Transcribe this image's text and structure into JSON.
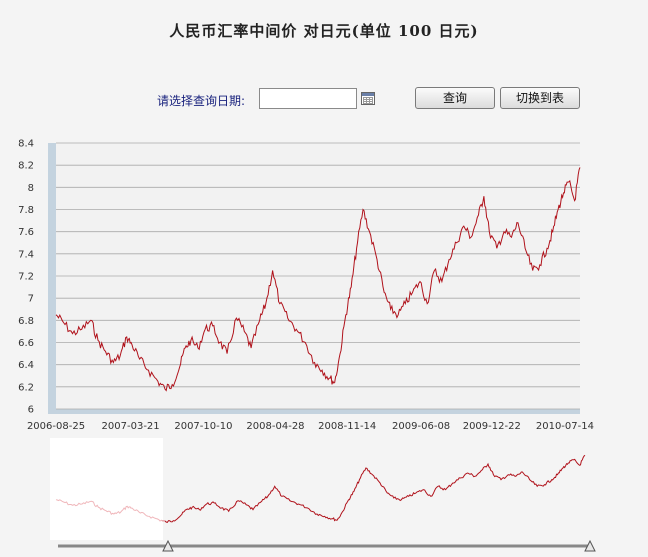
{
  "header": {
    "title": "人民币汇率中间价  对日元(单位 100 日元)"
  },
  "query": {
    "label": "请选择查询日期:",
    "date_value": "",
    "search_button": "查询",
    "switch_button": "切换到表"
  },
  "colors": {
    "line": "#b0121b",
    "axis_band": "#c4d3df",
    "grid": "#aaaaaa",
    "plot_bg": "#f2f2f2"
  },
  "chart_data": {
    "type": "line",
    "title": "人民币汇率中间价  对日元(单位 100 日元)",
    "xlabel": "",
    "ylabel": "",
    "ylim": [
      6,
      8.4
    ],
    "yticks": [
      "8.4",
      "8.2",
      "8",
      "7.8",
      "7.6",
      "7.4",
      "7.2",
      "7",
      "6.8",
      "6.6",
      "6.4",
      "6.2",
      "6"
    ],
    "xticks": [
      "2006-08-25",
      "2007-03-21",
      "2007-10-10",
      "2008-04-28",
      "2008-11-14",
      "2009-06-08",
      "2009-12-22",
      "2010-07-14"
    ],
    "x_range": [
      "2006-08-25",
      "2010-08-25"
    ],
    "grid": true,
    "series": [
      {
        "x": [
          "2006-08-25",
          "2006-09-15",
          "2006-10-10",
          "2006-11-05",
          "2006-11-30",
          "2006-12-20",
          "2007-01-10",
          "2007-02-01",
          "2007-02-20",
          "2007-03-10",
          "2007-03-25",
          "2007-04-15",
          "2007-05-10",
          "2007-06-05",
          "2007-06-25",
          "2007-07-15",
          "2007-08-05",
          "2007-08-20",
          "2007-09-05",
          "2007-09-25",
          "2007-10-15",
          "2007-11-05",
          "2007-11-25",
          "2007-12-15",
          "2008-01-10",
          "2008-02-01",
          "2008-02-20",
          "2008-03-15",
          "2008-04-01",
          "2008-04-20",
          "2008-05-10",
          "2008-06-01",
          "2008-06-25",
          "2008-07-20",
          "2008-08-15",
          "2008-09-05",
          "2008-09-25",
          "2008-10-10",
          "2008-10-25",
          "2008-11-10",
          "2008-11-25",
          "2008-12-10",
          "2008-12-28",
          "2009-01-15",
          "2009-02-05",
          "2009-02-25",
          "2009-03-15",
          "2009-04-05",
          "2009-04-25",
          "2009-05-15",
          "2009-06-05",
          "2009-06-25",
          "2009-07-15",
          "2009-08-05",
          "2009-08-25",
          "2009-09-15",
          "2009-10-05",
          "2009-10-25",
          "2009-11-15",
          "2009-11-30",
          "2009-12-15",
          "2010-01-05",
          "2010-01-25",
          "2010-02-15",
          "2010-03-05",
          "2010-03-25",
          "2010-04-15",
          "2010-05-05",
          "2010-05-25",
          "2010-06-10",
          "2010-06-25",
          "2010-07-10",
          "2010-07-25",
          "2010-08-10",
          "2010-08-25"
        ],
        "values": [
          6.85,
          6.78,
          6.68,
          6.72,
          6.8,
          6.62,
          6.52,
          6.42,
          6.48,
          6.65,
          6.58,
          6.45,
          6.35,
          6.25,
          6.18,
          6.22,
          6.38,
          6.55,
          6.62,
          6.55,
          6.72,
          6.75,
          6.6,
          6.5,
          6.82,
          6.7,
          6.55,
          6.8,
          6.95,
          7.25,
          6.95,
          6.82,
          6.72,
          6.6,
          6.42,
          6.35,
          6.28,
          6.24,
          6.5,
          6.85,
          7.1,
          7.45,
          7.8,
          7.6,
          7.35,
          7.05,
          6.9,
          6.85,
          6.95,
          7.05,
          7.15,
          6.95,
          7.25,
          7.15,
          7.35,
          7.5,
          7.65,
          7.55,
          7.75,
          7.92,
          7.6,
          7.45,
          7.6,
          7.55,
          7.68,
          7.45,
          7.25,
          7.3,
          7.45,
          7.6,
          7.8,
          7.95,
          8.05,
          7.88,
          8.18
        ]
      }
    ]
  },
  "navigator": {
    "left_handle": "left-range-handle",
    "right_handle": "right-range-handle"
  }
}
